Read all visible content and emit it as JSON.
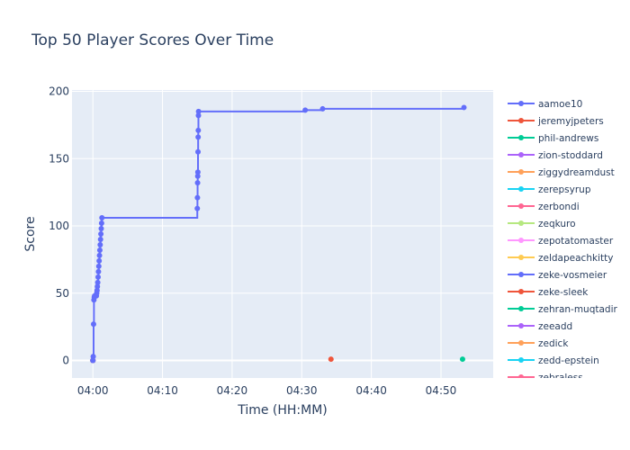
{
  "chart_data": {
    "type": "line",
    "title": "Top 50 Player Scores Over Time",
    "xlabel": "Time (HH:MM)",
    "ylabel": "Score",
    "x_tick_labels": [
      "04:00",
      "04:10",
      "04:20",
      "04:30",
      "04:40",
      "04:50"
    ],
    "x_ticks_minutes": [
      0,
      10,
      20,
      30,
      40,
      50
    ],
    "x_range_minutes": [
      -3,
      57.5
    ],
    "y_ticks": [
      0,
      50,
      100,
      150,
      200
    ],
    "ylim": [
      -13,
      201
    ],
    "grid": true,
    "legend_position": "right",
    "series": [
      {
        "name": "aamoe10",
        "color": "#636efa",
        "line_shape": "step",
        "points": [
          {
            "minute": 0.0,
            "score": 0
          },
          {
            "minute": 0.05,
            "score": 3
          },
          {
            "minute": 0.1,
            "score": 27
          },
          {
            "minute": 0.15,
            "score": 45
          },
          {
            "minute": 0.2,
            "score": 47
          },
          {
            "minute": 0.25,
            "score": 48
          },
          {
            "minute": 0.5,
            "score": 48
          },
          {
            "minute": 0.55,
            "score": 50
          },
          {
            "minute": 0.6,
            "score": 52
          },
          {
            "minute": 0.65,
            "score": 55
          },
          {
            "minute": 0.7,
            "score": 58
          },
          {
            "minute": 0.75,
            "score": 62
          },
          {
            "minute": 0.8,
            "score": 66
          },
          {
            "minute": 0.85,
            "score": 70
          },
          {
            "minute": 0.9,
            "score": 74
          },
          {
            "minute": 0.95,
            "score": 78
          },
          {
            "minute": 1.0,
            "score": 82
          },
          {
            "minute": 1.05,
            "score": 86
          },
          {
            "minute": 1.1,
            "score": 90
          },
          {
            "minute": 1.15,
            "score": 94
          },
          {
            "minute": 1.2,
            "score": 98
          },
          {
            "minute": 1.25,
            "score": 102
          },
          {
            "minute": 1.3,
            "score": 106
          },
          {
            "minute": 15.0,
            "score": 113
          },
          {
            "minute": 15.02,
            "score": 121
          },
          {
            "minute": 15.04,
            "score": 132
          },
          {
            "minute": 15.06,
            "score": 137
          },
          {
            "minute": 15.08,
            "score": 140
          },
          {
            "minute": 15.1,
            "score": 155
          },
          {
            "minute": 15.12,
            "score": 166
          },
          {
            "minute": 15.14,
            "score": 171
          },
          {
            "minute": 15.16,
            "score": 182
          },
          {
            "minute": 15.18,
            "score": 185
          },
          {
            "minute": 30.5,
            "score": 186
          },
          {
            "minute": 33.0,
            "score": 187
          },
          {
            "minute": 53.3,
            "score": 188
          }
        ]
      },
      {
        "name": "jeremyjpeters",
        "color": "#ef553b",
        "points": [
          {
            "minute": 34.2,
            "score": 1
          }
        ]
      },
      {
        "name": "phil-andrews",
        "color": "#00cc96",
        "points": [
          {
            "minute": 53.1,
            "score": 1
          }
        ]
      },
      {
        "name": "zion-stoddard",
        "color": "#ab63fa",
        "points": [
          {
            "minute": 0.0,
            "score": 0
          }
        ]
      },
      {
        "name": "ziggydreamdust",
        "color": "#ffa15a",
        "points": [
          {
            "minute": 0.0,
            "score": 0
          }
        ]
      },
      {
        "name": "zerepsyrup",
        "color": "#19d3f3",
        "points": [
          {
            "minute": 0.0,
            "score": 0
          }
        ]
      },
      {
        "name": "zerbondi",
        "color": "#ff6692",
        "points": [
          {
            "minute": 0.0,
            "score": 0
          }
        ]
      },
      {
        "name": "zeqkuro",
        "color": "#b6e880",
        "points": [
          {
            "minute": 0.0,
            "score": 0
          }
        ]
      },
      {
        "name": "zepotatomaster",
        "color": "#ff97ff",
        "points": [
          {
            "minute": 0.0,
            "score": 0
          }
        ]
      },
      {
        "name": "zeldapeachkitty",
        "color": "#fecb52",
        "points": [
          {
            "minute": 0.0,
            "score": 0
          }
        ]
      },
      {
        "name": "zeke-vosmeier",
        "color": "#636efa",
        "points": [
          {
            "minute": 0.0,
            "score": 0
          }
        ]
      },
      {
        "name": "zeke-sleek",
        "color": "#ef553b",
        "points": [
          {
            "minute": 0.0,
            "score": 0
          }
        ]
      },
      {
        "name": "zehran-muqtadir",
        "color": "#00cc96",
        "points": [
          {
            "minute": 0.0,
            "score": 0
          }
        ]
      },
      {
        "name": "zeeadd",
        "color": "#ab63fa",
        "points": [
          {
            "minute": 0.0,
            "score": 0
          }
        ]
      },
      {
        "name": "zedick",
        "color": "#ffa15a",
        "points": [
          {
            "minute": 0.0,
            "score": 0
          }
        ]
      },
      {
        "name": "zedd-epstein",
        "color": "#19d3f3",
        "points": [
          {
            "minute": 0.0,
            "score": 0
          }
        ]
      },
      {
        "name": "zebraless",
        "color": "#ff6692",
        "points": [
          {
            "minute": 0.0,
            "score": 0
          }
        ]
      }
    ]
  }
}
